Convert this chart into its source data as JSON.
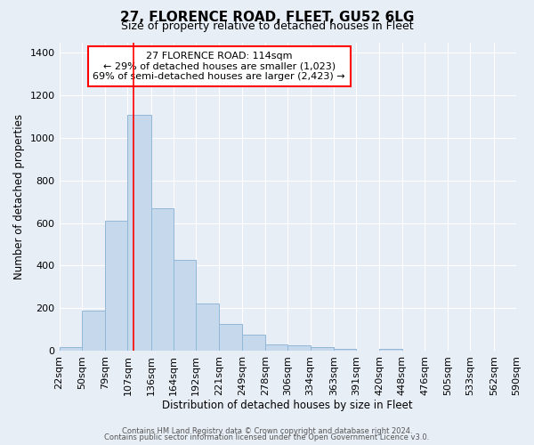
{
  "title": "27, FLORENCE ROAD, FLEET, GU52 6LG",
  "subtitle": "Size of property relative to detached houses in Fleet",
  "xlabel": "Distribution of detached houses by size in Fleet",
  "ylabel": "Number of detached properties",
  "footer_line1": "Contains HM Land Registry data © Crown copyright and database right 2024.",
  "footer_line2": "Contains public sector information licensed under the Open Government Licence v3.0.",
  "annotation_line1": "27 FLORENCE ROAD: 114sqm",
  "annotation_line2": "← 29% of detached houses are smaller (1,023)",
  "annotation_line3": "69% of semi-detached houses are larger (2,423) →",
  "bar_color": "#c6d9ec",
  "bar_edge_color": "#92b8d8",
  "bg_color": "#e8eef6",
  "plot_bg_color": "#e8eef6",
  "red_line_x": 114,
  "bin_edges": [
    22,
    50,
    79,
    107,
    136,
    164,
    192,
    221,
    249,
    278,
    306,
    334,
    363,
    391,
    420,
    448,
    476,
    505,
    533,
    562,
    590
  ],
  "bar_heights": [
    15,
    190,
    610,
    1110,
    670,
    425,
    220,
    125,
    75,
    30,
    25,
    15,
    10,
    0,
    10,
    0,
    0,
    0,
    0,
    0
  ],
  "ylim": [
    0,
    1450
  ],
  "yticks": [
    0,
    200,
    400,
    600,
    800,
    1000,
    1200,
    1400
  ],
  "grid_color": "#ffffff",
  "title_fontsize": 11,
  "subtitle_fontsize": 9,
  "footer_fontsize": 6
}
